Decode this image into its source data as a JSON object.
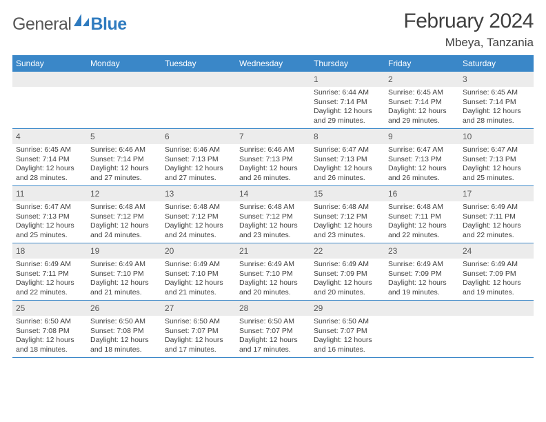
{
  "logo": {
    "general": "General",
    "blue": "Blue"
  },
  "title": "February 2024",
  "location": "Mbeya, Tanzania",
  "header_bg": "#3a87c8",
  "daynum_bg": "#ececec",
  "text_color": "#404040",
  "weekdays": [
    "Sunday",
    "Monday",
    "Tuesday",
    "Wednesday",
    "Thursday",
    "Friday",
    "Saturday"
  ],
  "weeks": [
    [
      {
        "day": "",
        "sunrise": "",
        "sunset": "",
        "daylight1": "",
        "daylight2": ""
      },
      {
        "day": "",
        "sunrise": "",
        "sunset": "",
        "daylight1": "",
        "daylight2": ""
      },
      {
        "day": "",
        "sunrise": "",
        "sunset": "",
        "daylight1": "",
        "daylight2": ""
      },
      {
        "day": "",
        "sunrise": "",
        "sunset": "",
        "daylight1": "",
        "daylight2": ""
      },
      {
        "day": "1",
        "sunrise": "Sunrise: 6:44 AM",
        "sunset": "Sunset: 7:14 PM",
        "daylight1": "Daylight: 12 hours",
        "daylight2": "and 29 minutes."
      },
      {
        "day": "2",
        "sunrise": "Sunrise: 6:45 AM",
        "sunset": "Sunset: 7:14 PM",
        "daylight1": "Daylight: 12 hours",
        "daylight2": "and 29 minutes."
      },
      {
        "day": "3",
        "sunrise": "Sunrise: 6:45 AM",
        "sunset": "Sunset: 7:14 PM",
        "daylight1": "Daylight: 12 hours",
        "daylight2": "and 28 minutes."
      }
    ],
    [
      {
        "day": "4",
        "sunrise": "Sunrise: 6:45 AM",
        "sunset": "Sunset: 7:14 PM",
        "daylight1": "Daylight: 12 hours",
        "daylight2": "and 28 minutes."
      },
      {
        "day": "5",
        "sunrise": "Sunrise: 6:46 AM",
        "sunset": "Sunset: 7:14 PM",
        "daylight1": "Daylight: 12 hours",
        "daylight2": "and 27 minutes."
      },
      {
        "day": "6",
        "sunrise": "Sunrise: 6:46 AM",
        "sunset": "Sunset: 7:13 PM",
        "daylight1": "Daylight: 12 hours",
        "daylight2": "and 27 minutes."
      },
      {
        "day": "7",
        "sunrise": "Sunrise: 6:46 AM",
        "sunset": "Sunset: 7:13 PM",
        "daylight1": "Daylight: 12 hours",
        "daylight2": "and 26 minutes."
      },
      {
        "day": "8",
        "sunrise": "Sunrise: 6:47 AM",
        "sunset": "Sunset: 7:13 PM",
        "daylight1": "Daylight: 12 hours",
        "daylight2": "and 26 minutes."
      },
      {
        "day": "9",
        "sunrise": "Sunrise: 6:47 AM",
        "sunset": "Sunset: 7:13 PM",
        "daylight1": "Daylight: 12 hours",
        "daylight2": "and 26 minutes."
      },
      {
        "day": "10",
        "sunrise": "Sunrise: 6:47 AM",
        "sunset": "Sunset: 7:13 PM",
        "daylight1": "Daylight: 12 hours",
        "daylight2": "and 25 minutes."
      }
    ],
    [
      {
        "day": "11",
        "sunrise": "Sunrise: 6:47 AM",
        "sunset": "Sunset: 7:13 PM",
        "daylight1": "Daylight: 12 hours",
        "daylight2": "and 25 minutes."
      },
      {
        "day": "12",
        "sunrise": "Sunrise: 6:48 AM",
        "sunset": "Sunset: 7:12 PM",
        "daylight1": "Daylight: 12 hours",
        "daylight2": "and 24 minutes."
      },
      {
        "day": "13",
        "sunrise": "Sunrise: 6:48 AM",
        "sunset": "Sunset: 7:12 PM",
        "daylight1": "Daylight: 12 hours",
        "daylight2": "and 24 minutes."
      },
      {
        "day": "14",
        "sunrise": "Sunrise: 6:48 AM",
        "sunset": "Sunset: 7:12 PM",
        "daylight1": "Daylight: 12 hours",
        "daylight2": "and 23 minutes."
      },
      {
        "day": "15",
        "sunrise": "Sunrise: 6:48 AM",
        "sunset": "Sunset: 7:12 PM",
        "daylight1": "Daylight: 12 hours",
        "daylight2": "and 23 minutes."
      },
      {
        "day": "16",
        "sunrise": "Sunrise: 6:48 AM",
        "sunset": "Sunset: 7:11 PM",
        "daylight1": "Daylight: 12 hours",
        "daylight2": "and 22 minutes."
      },
      {
        "day": "17",
        "sunrise": "Sunrise: 6:49 AM",
        "sunset": "Sunset: 7:11 PM",
        "daylight1": "Daylight: 12 hours",
        "daylight2": "and 22 minutes."
      }
    ],
    [
      {
        "day": "18",
        "sunrise": "Sunrise: 6:49 AM",
        "sunset": "Sunset: 7:11 PM",
        "daylight1": "Daylight: 12 hours",
        "daylight2": "and 22 minutes."
      },
      {
        "day": "19",
        "sunrise": "Sunrise: 6:49 AM",
        "sunset": "Sunset: 7:10 PM",
        "daylight1": "Daylight: 12 hours",
        "daylight2": "and 21 minutes."
      },
      {
        "day": "20",
        "sunrise": "Sunrise: 6:49 AM",
        "sunset": "Sunset: 7:10 PM",
        "daylight1": "Daylight: 12 hours",
        "daylight2": "and 21 minutes."
      },
      {
        "day": "21",
        "sunrise": "Sunrise: 6:49 AM",
        "sunset": "Sunset: 7:10 PM",
        "daylight1": "Daylight: 12 hours",
        "daylight2": "and 20 minutes."
      },
      {
        "day": "22",
        "sunrise": "Sunrise: 6:49 AM",
        "sunset": "Sunset: 7:09 PM",
        "daylight1": "Daylight: 12 hours",
        "daylight2": "and 20 minutes."
      },
      {
        "day": "23",
        "sunrise": "Sunrise: 6:49 AM",
        "sunset": "Sunset: 7:09 PM",
        "daylight1": "Daylight: 12 hours",
        "daylight2": "and 19 minutes."
      },
      {
        "day": "24",
        "sunrise": "Sunrise: 6:49 AM",
        "sunset": "Sunset: 7:09 PM",
        "daylight1": "Daylight: 12 hours",
        "daylight2": "and 19 minutes."
      }
    ],
    [
      {
        "day": "25",
        "sunrise": "Sunrise: 6:50 AM",
        "sunset": "Sunset: 7:08 PM",
        "daylight1": "Daylight: 12 hours",
        "daylight2": "and 18 minutes."
      },
      {
        "day": "26",
        "sunrise": "Sunrise: 6:50 AM",
        "sunset": "Sunset: 7:08 PM",
        "daylight1": "Daylight: 12 hours",
        "daylight2": "and 18 minutes."
      },
      {
        "day": "27",
        "sunrise": "Sunrise: 6:50 AM",
        "sunset": "Sunset: 7:07 PM",
        "daylight1": "Daylight: 12 hours",
        "daylight2": "and 17 minutes."
      },
      {
        "day": "28",
        "sunrise": "Sunrise: 6:50 AM",
        "sunset": "Sunset: 7:07 PM",
        "daylight1": "Daylight: 12 hours",
        "daylight2": "and 17 minutes."
      },
      {
        "day": "29",
        "sunrise": "Sunrise: 6:50 AM",
        "sunset": "Sunset: 7:07 PM",
        "daylight1": "Daylight: 12 hours",
        "daylight2": "and 16 minutes."
      },
      {
        "day": "",
        "sunrise": "",
        "sunset": "",
        "daylight1": "",
        "daylight2": ""
      },
      {
        "day": "",
        "sunrise": "",
        "sunset": "",
        "daylight1": "",
        "daylight2": ""
      }
    ]
  ]
}
